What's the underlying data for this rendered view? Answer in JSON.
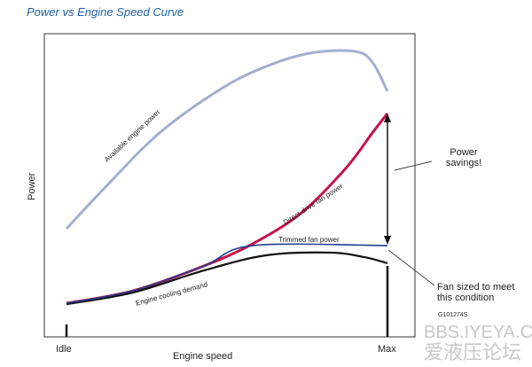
{
  "chart_data": {
    "type": "line",
    "title": "Power vs Engine Speed Curve",
    "xlabel": "Engine speed",
    "ylabel": "Power",
    "xticks": [
      "Idle",
      "Max"
    ],
    "xlim": [
      0,
      100
    ],
    "ylim": [
      0,
      100
    ],
    "series": [
      {
        "name": "Available engine power",
        "color": "#a3afd0",
        "x": [
          0,
          12.4,
          29,
          48.3,
          62.2,
          76,
          89.8,
          95.3,
          100
        ],
        "y": [
          35.7,
          49.7,
          67.3,
          81.9,
          89.2,
          93.6,
          94.2,
          90.6,
          81
        ]
      },
      {
        "name": "Direct-drive fan power",
        "color": "#c8104a",
        "x": [
          0,
          20.7,
          42.8,
          58,
          73.2,
          87,
          95.3,
          100
        ],
        "y": [
          11.1,
          15.2,
          23.4,
          30.7,
          40.9,
          55.6,
          67.3,
          73.7
        ]
      },
      {
        "name": "Trimmed fan power",
        "color": "#1f3f8f",
        "x": [
          0,
          20.7,
          42.8,
          58,
          100
        ],
        "y": [
          11.1,
          15.2,
          23.4,
          30.1,
          30.1
        ]
      },
      {
        "name": "Engine cooling demand",
        "color": "#111111",
        "x": [
          0,
          20.7,
          42.8,
          62.2,
          81.8,
          92.8,
          100
        ],
        "y": [
          10.8,
          14.6,
          21.9,
          26.9,
          27.8,
          26.3,
          24.3
        ]
      }
    ],
    "annotations": [
      "Power savings!",
      "Fan sized to meet this condition"
    ],
    "code": "G101274S"
  },
  "watermark": {
    "line1": "BBS.IYEYA.CN",
    "line2": "爱液压论坛"
  }
}
